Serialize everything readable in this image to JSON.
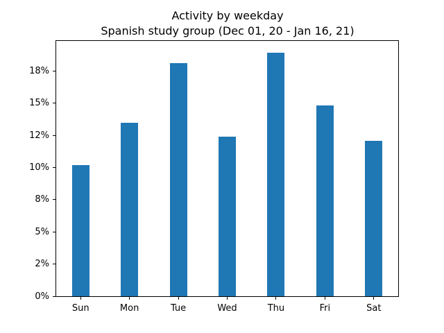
{
  "chart_data": {
    "type": "bar",
    "title": "Activity by weekday",
    "subtitle": "Spanish study group (Dec 01, 20 - Jan 16, 21)",
    "categories": [
      "Sun",
      "Mon",
      "Tue",
      "Wed",
      "Thu",
      "Fri",
      "Sat"
    ],
    "values": [
      10.2,
      13.5,
      18.1,
      12.4,
      18.9,
      14.8,
      12.1
    ],
    "unit": "%",
    "bar_color": "#1f77b4",
    "axis_color": "#000000",
    "background_color": "#ffffff",
    "xlabel": "",
    "ylabel": "",
    "ylim": [
      0,
      19.84
    ],
    "yticks": [
      {
        "value": 0,
        "label": "0%"
      },
      {
        "value": 2.5,
        "label": "2%"
      },
      {
        "value": 5,
        "label": "5%"
      },
      {
        "value": 7.5,
        "label": "8%"
      },
      {
        "value": 10,
        "label": "10%"
      },
      {
        "value": 12.5,
        "label": "12%"
      },
      {
        "value": 15,
        "label": "15%"
      },
      {
        "value": 17.5,
        "label": "18%"
      }
    ],
    "grid": false,
    "legend": false
  }
}
